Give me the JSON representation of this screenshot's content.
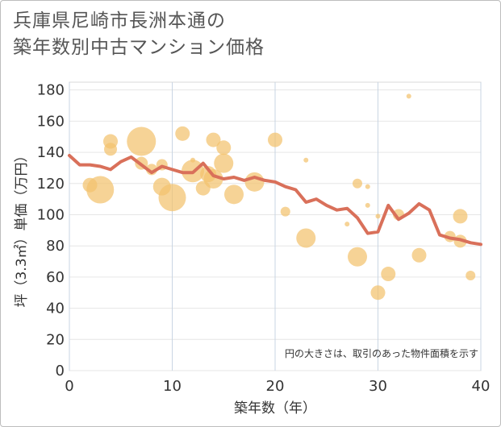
{
  "title_line1": "兵庫県尼崎市長洲本通の",
  "title_line2": "築年数別中古マンション価格",
  "chart_data": {
    "type": "scatter",
    "xlabel": "築年数（年）",
    "ylabel": "坪（3.3㎡）単価（万円）",
    "xlim": [
      0,
      40
    ],
    "ylim": [
      0,
      185
    ],
    "xticks": [
      0,
      10,
      20,
      30,
      40
    ],
    "yticks": [
      0,
      20,
      40,
      60,
      80,
      100,
      120,
      140,
      160,
      180
    ],
    "grid": true,
    "note": "円の大きさは、取引のあった物件面積を示す",
    "bubble_color": "#f3c26e",
    "line_color": "#d9705a",
    "bubbles": [
      {
        "x": 2,
        "y": 119,
        "s": 9
      },
      {
        "x": 3,
        "y": 116,
        "s": 17
      },
      {
        "x": 4,
        "y": 147,
        "s": 9
      },
      {
        "x": 4,
        "y": 142,
        "s": 8
      },
      {
        "x": 7,
        "y": 147,
        "s": 18
      },
      {
        "x": 7,
        "y": 133,
        "s": 8
      },
      {
        "x": 8,
        "y": 129,
        "s": 7
      },
      {
        "x": 9,
        "y": 132,
        "s": 7
      },
      {
        "x": 9,
        "y": 118,
        "s": 11
      },
      {
        "x": 10,
        "y": 111,
        "s": 17
      },
      {
        "x": 11,
        "y": 152,
        "s": 9
      },
      {
        "x": 12,
        "y": 135,
        "s": 3
      },
      {
        "x": 12,
        "y": 128,
        "s": 14
      },
      {
        "x": 13,
        "y": 117,
        "s": 9
      },
      {
        "x": 13.5,
        "y": 126,
        "s": 10
      },
      {
        "x": 14,
        "y": 148,
        "s": 9
      },
      {
        "x": 14,
        "y": 123,
        "s": 12
      },
      {
        "x": 15,
        "y": 143,
        "s": 9
      },
      {
        "x": 15,
        "y": 133,
        "s": 12
      },
      {
        "x": 16,
        "y": 113,
        "s": 12
      },
      {
        "x": 18,
        "y": 121,
        "s": 12
      },
      {
        "x": 20,
        "y": 148,
        "s": 9
      },
      {
        "x": 21,
        "y": 102,
        "s": 6
      },
      {
        "x": 23,
        "y": 135,
        "s": 3
      },
      {
        "x": 23,
        "y": 85,
        "s": 12
      },
      {
        "x": 27,
        "y": 94,
        "s": 3
      },
      {
        "x": 28,
        "y": 120,
        "s": 6
      },
      {
        "x": 28,
        "y": 73,
        "s": 12
      },
      {
        "x": 29,
        "y": 118,
        "s": 3
      },
      {
        "x": 29,
        "y": 106,
        "s": 3
      },
      {
        "x": 30,
        "y": 99,
        "s": 3
      },
      {
        "x": 30,
        "y": 50,
        "s": 9
      },
      {
        "x": 31,
        "y": 62,
        "s": 9
      },
      {
        "x": 32,
        "y": 100,
        "s": 7
      },
      {
        "x": 33,
        "y": 176,
        "s": 3
      },
      {
        "x": 34,
        "y": 74,
        "s": 9
      },
      {
        "x": 37,
        "y": 86,
        "s": 7
      },
      {
        "x": 38,
        "y": 99,
        "s": 9
      },
      {
        "x": 38,
        "y": 83,
        "s": 8
      },
      {
        "x": 39,
        "y": 61,
        "s": 6
      }
    ],
    "trend": {
      "x": [
        0,
        1,
        2,
        3,
        4,
        5,
        6,
        7,
        8,
        9,
        10,
        11,
        12,
        13,
        14,
        15,
        16,
        17,
        18,
        19,
        20,
        21,
        22,
        23,
        24,
        25,
        26,
        27,
        28,
        29,
        30,
        31,
        32,
        33,
        34,
        35,
        36,
        37,
        38,
        39,
        40
      ],
      "y": [
        138,
        132,
        132,
        131,
        129,
        134,
        137,
        132,
        127,
        131,
        129,
        127,
        127,
        133,
        125,
        123,
        124,
        122,
        124,
        122,
        121,
        118,
        116,
        108,
        110,
        106,
        103,
        104,
        98,
        88,
        89,
        106,
        97,
        101,
        107,
        103,
        87,
        85,
        84,
        82,
        81
      ]
    }
  }
}
